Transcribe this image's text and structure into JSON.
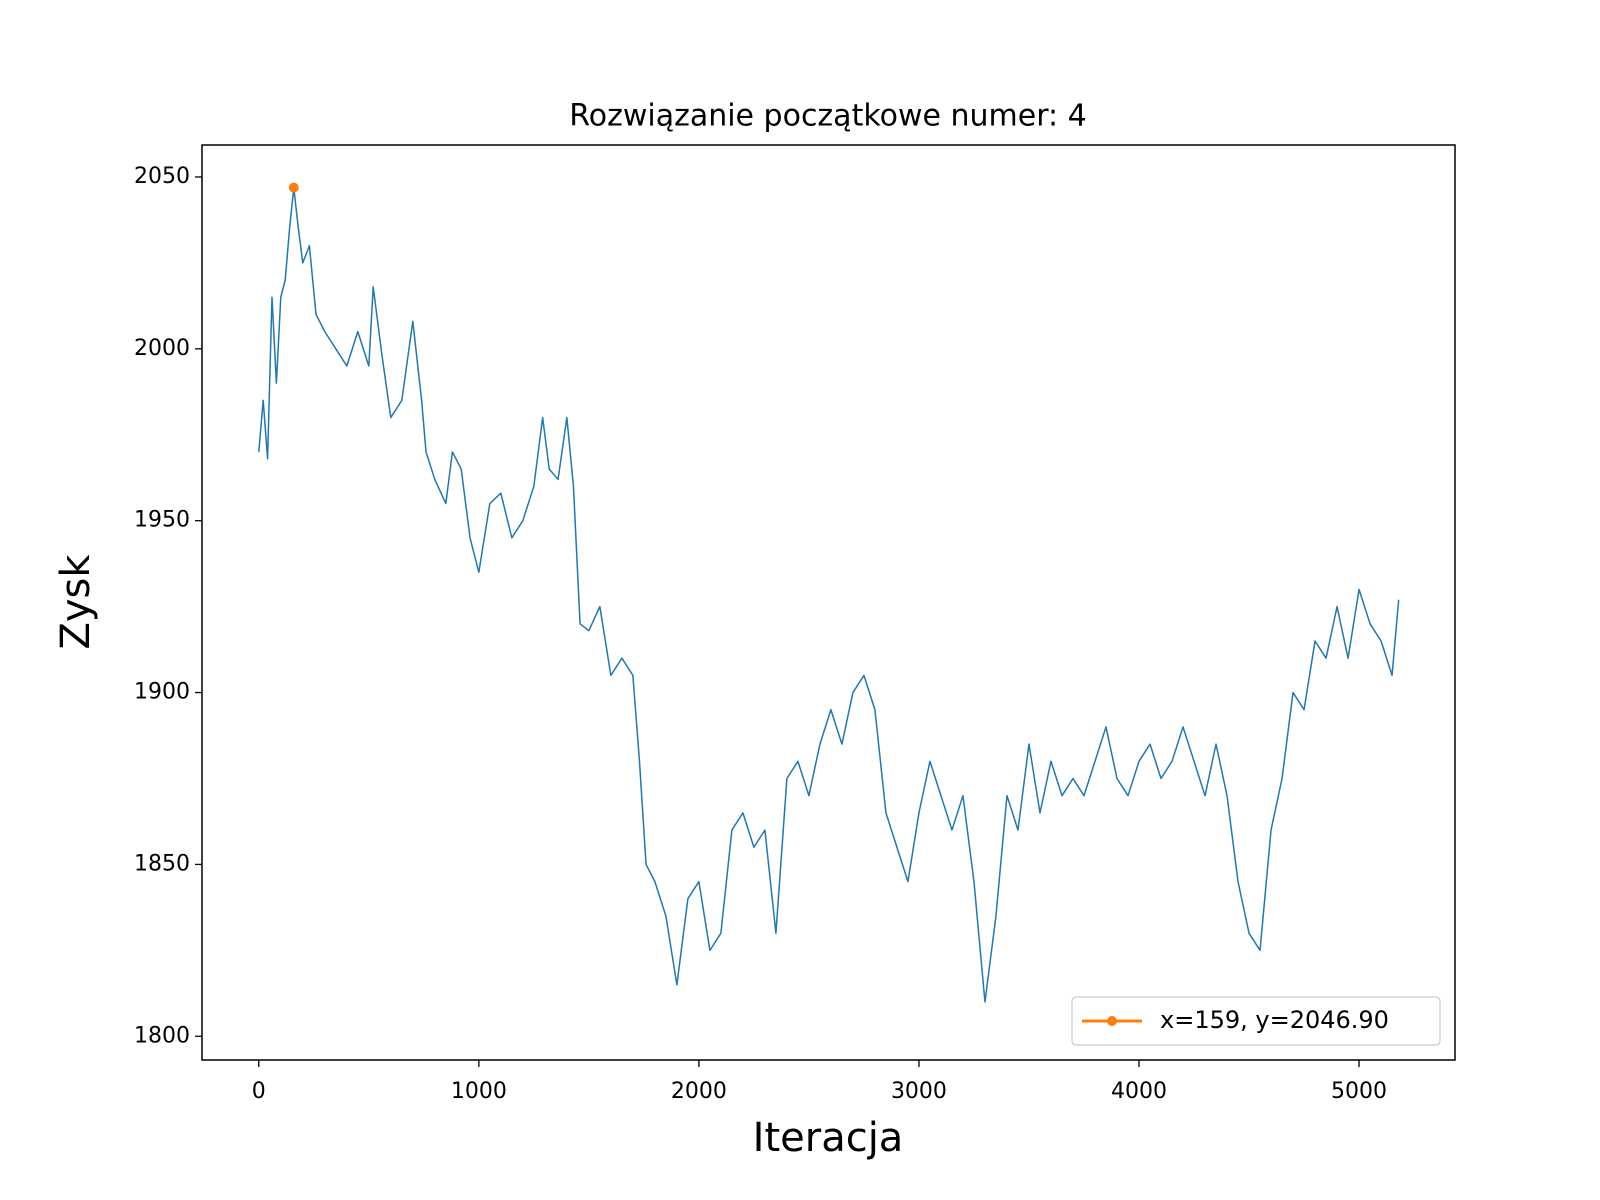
{
  "chart_data": {
    "type": "line",
    "title": "Rozwiązanie początkowe numer: 4",
    "x_label": "Iteracja",
    "y_label": "Zysk",
    "xlim": [
      -258,
      5436
    ],
    "ylim": [
      1793.1,
      2059.3
    ],
    "xticks": [
      0,
      1000,
      2000,
      3000,
      4000,
      5000
    ],
    "yticks": [
      1800,
      1850,
      1900,
      1950,
      2000,
      2050
    ],
    "legend_position": "lower right",
    "series": [
      {
        "color": "#1f77b4",
        "x": [
          0,
          20,
          40,
          60,
          80,
          100,
          120,
          140,
          159,
          180,
          200,
          230,
          260,
          300,
          350,
          400,
          450,
          500,
          520,
          560,
          600,
          650,
          700,
          740,
          760,
          800,
          850,
          880,
          920,
          960,
          1000,
          1050,
          1100,
          1150,
          1200,
          1250,
          1290,
          1320,
          1360,
          1400,
          1430,
          1460,
          1500,
          1550,
          1600,
          1650,
          1700,
          1730,
          1760,
          1800,
          1850,
          1900,
          1950,
          2000,
          2050,
          2100,
          2150,
          2200,
          2250,
          2300,
          2350,
          2400,
          2450,
          2500,
          2550,
          2600,
          2650,
          2700,
          2750,
          2800,
          2850,
          2900,
          2950,
          3000,
          3050,
          3100,
          3150,
          3200,
          3250,
          3300,
          3350,
          3400,
          3450,
          3500,
          3550,
          3600,
          3650,
          3700,
          3750,
          3800,
          3850,
          3900,
          3950,
          4000,
          4050,
          4100,
          4150,
          4200,
          4250,
          4300,
          4350,
          4400,
          4450,
          4500,
          4550,
          4600,
          4650,
          4700,
          4750,
          4800,
          4850,
          4900,
          4950,
          5000,
          5050,
          5100,
          5150,
          5180
        ],
        "values": [
          1970,
          1985,
          1968,
          2015,
          1990,
          2015,
          2020,
          2035,
          2046.9,
          2035,
          2025,
          2030,
          2010,
          2005,
          2000,
          1995,
          2005,
          1995,
          2018,
          1998,
          1980,
          1985,
          2008,
          1985,
          1970,
          1962,
          1955,
          1970,
          1965,
          1945,
          1935,
          1955,
          1958,
          1945,
          1950,
          1960,
          1980,
          1965,
          1962,
          1980,
          1960,
          1920,
          1918,
          1925,
          1905,
          1910,
          1905,
          1880,
          1850,
          1845,
          1835,
          1815,
          1840,
          1845,
          1825,
          1830,
          1860,
          1865,
          1855,
          1860,
          1830,
          1875,
          1880,
          1870,
          1885,
          1895,
          1885,
          1900,
          1905,
          1895,
          1865,
          1855,
          1845,
          1865,
          1880,
          1870,
          1860,
          1870,
          1845,
          1810,
          1835,
          1870,
          1860,
          1885,
          1865,
          1880,
          1870,
          1875,
          1870,
          1880,
          1890,
          1875,
          1870,
          1880,
          1885,
          1875,
          1880,
          1890,
          1880,
          1870,
          1885,
          1870,
          1845,
          1830,
          1825,
          1860,
          1875,
          1900,
          1895,
          1915,
          1910,
          1925,
          1910,
          1930,
          1920,
          1915,
          1905,
          1927
        ]
      },
      {
        "name": "x=159, y=2046.90",
        "color": "#ff7f0e",
        "marker": true,
        "x": [
          159
        ],
        "values": [
          2046.9
        ]
      }
    ]
  }
}
